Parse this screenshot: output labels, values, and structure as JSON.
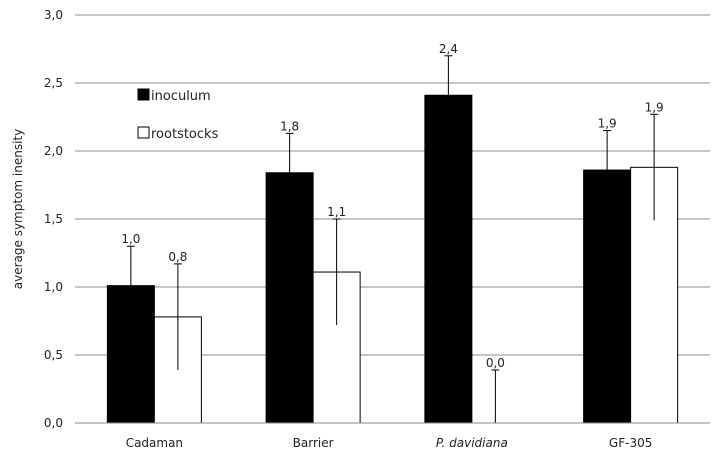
{
  "chart_data": {
    "type": "bar",
    "title": "",
    "xlabel": "",
    "ylabel": "average symptom inensity",
    "ylim": [
      0,
      3
    ],
    "ytick_step": 0.5,
    "ytick_labels": [
      "0,0",
      "0,5",
      "1,0",
      "1,5",
      "2,0",
      "2,5",
      "3,0"
    ],
    "grid": true,
    "legend_position": "upper-left",
    "categories": [
      "Cadaman",
      "Barrier",
      "P. davidiana",
      "GF-305"
    ],
    "italic_categories": [
      "P. davidiana"
    ],
    "series": [
      {
        "name": "inoculum",
        "color": "#000000",
        "values": [
          1.01,
          1.84,
          2.41,
          1.86
        ],
        "labels": [
          "1,0",
          "1,8",
          "2,4",
          "1,9"
        ],
        "error_plus": [
          0.29,
          0.29,
          0.29,
          0.29
        ]
      },
      {
        "name": "rootstocks",
        "color": "#ffffff",
        "values": [
          0.78,
          1.11,
          0.0,
          1.88
        ],
        "labels": [
          "0,8",
          "1,1",
          "0,0",
          "1,9"
        ],
        "error_plus": [
          0.39,
          0.39,
          0.39,
          0.39
        ],
        "error_minus": [
          0.39,
          0.39,
          0.0,
          0.39
        ]
      }
    ]
  }
}
